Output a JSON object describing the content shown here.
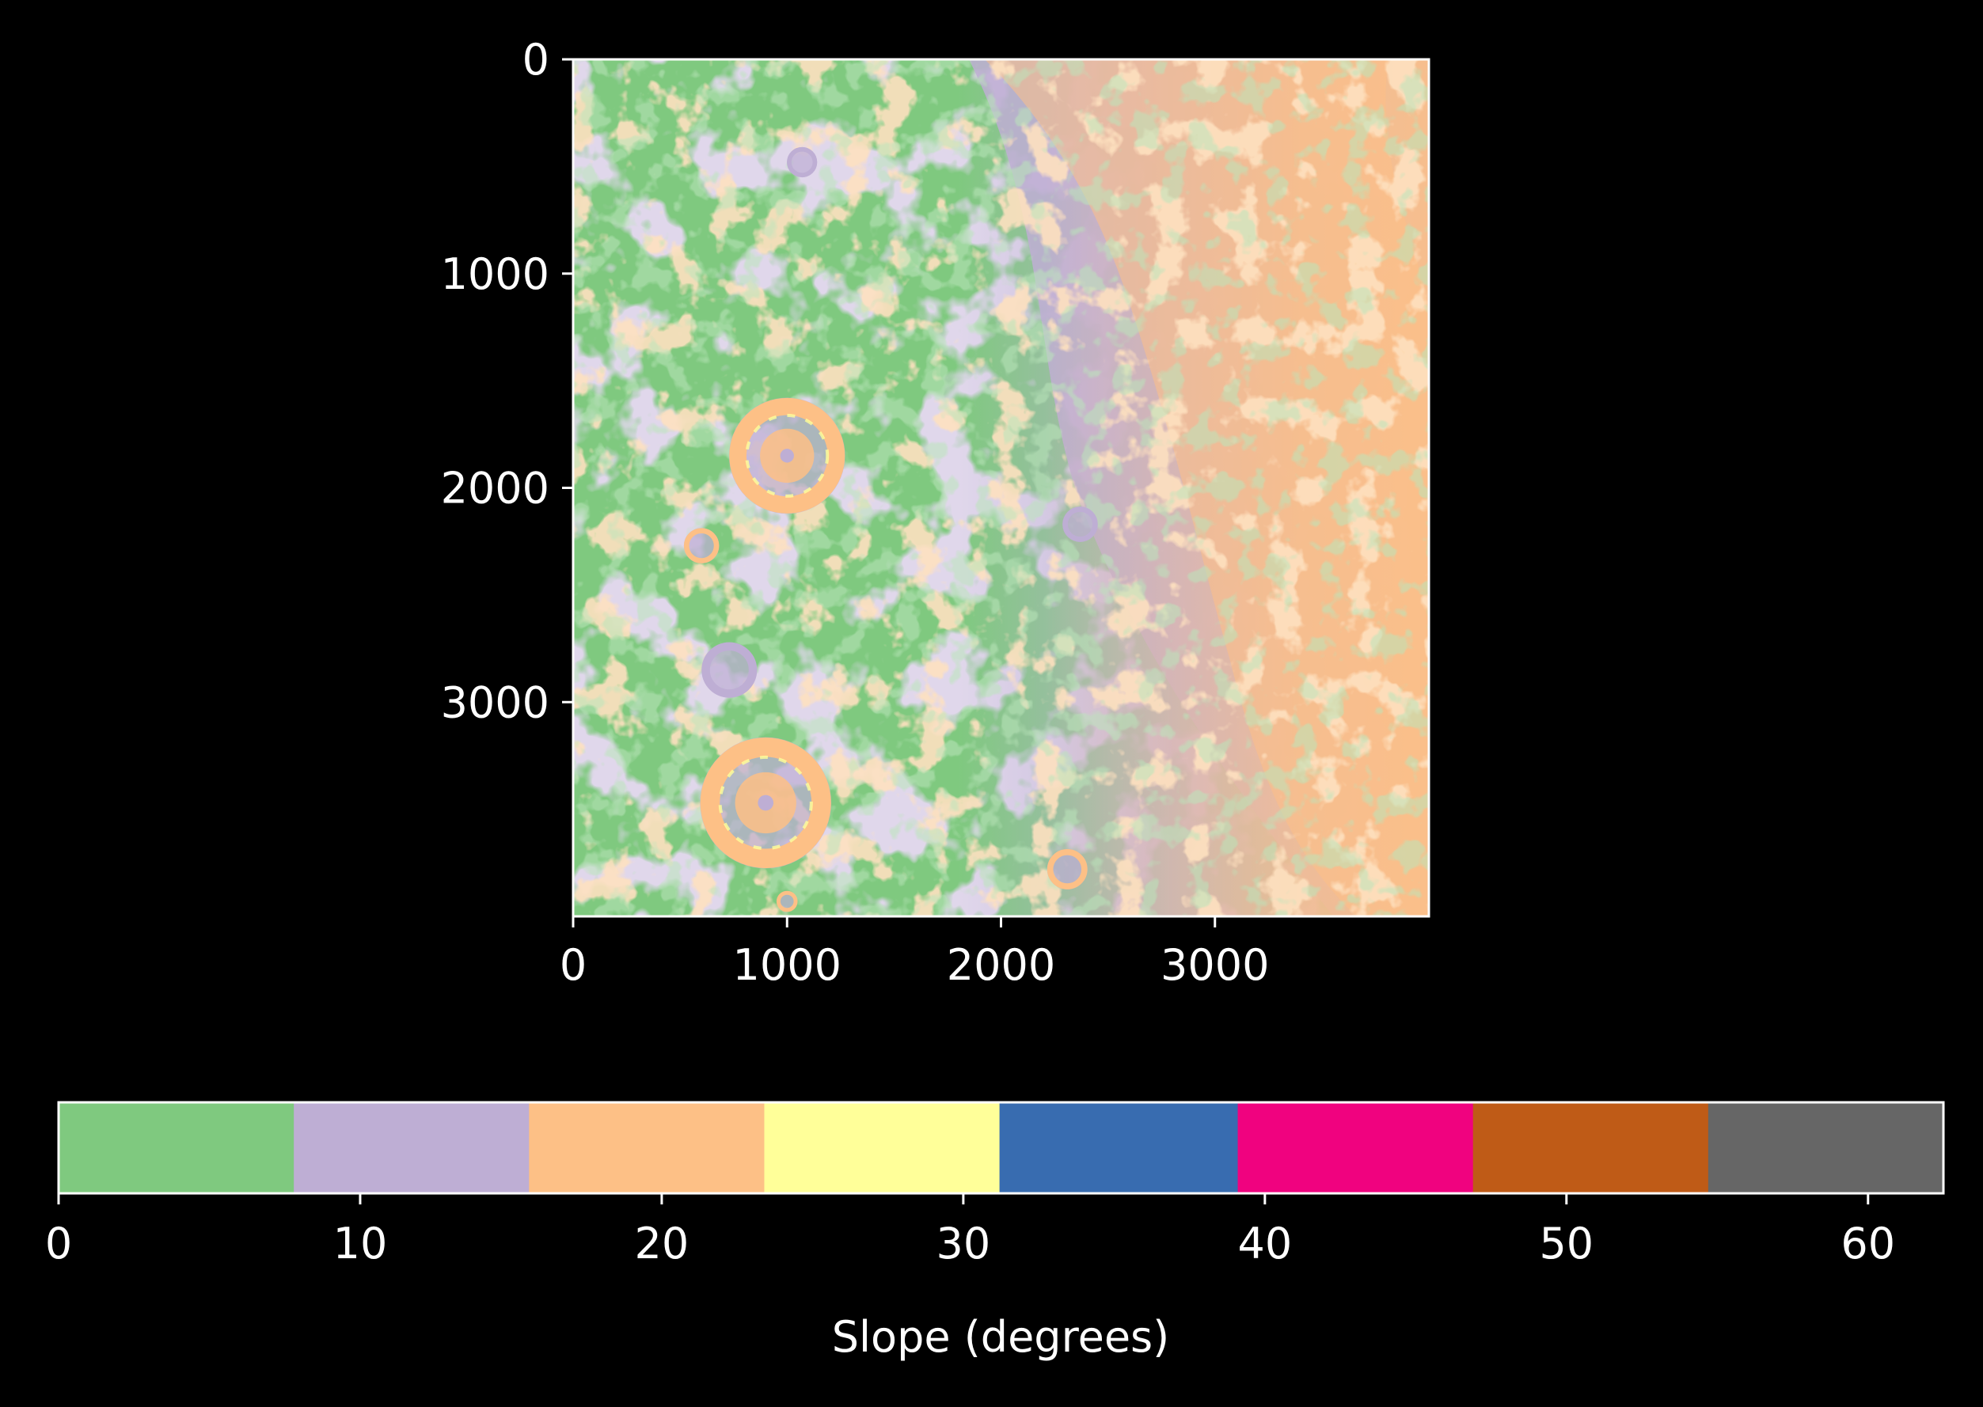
{
  "chart_data": {
    "type": "heatmap",
    "title": "",
    "image": {
      "xlabel": "",
      "ylabel": "",
      "xlim": [
        0,
        4000
      ],
      "ylim": [
        4000,
        0
      ],
      "x_ticks": [
        0,
        1000,
        2000,
        3000
      ],
      "y_ticks": [
        0,
        1000,
        2000,
        3000
      ],
      "features": [
        {
          "kind": "crater",
          "x": 1000,
          "y": 1850,
          "r": 230,
          "rim_slope": 20
        },
        {
          "kind": "crater",
          "x": 600,
          "y": 2270,
          "r": 70,
          "rim_slope": 20
        },
        {
          "kind": "crater",
          "x": 730,
          "y": 2850,
          "r": 110,
          "rim_slope": 10
        },
        {
          "kind": "crater",
          "x": 900,
          "y": 3470,
          "r": 260,
          "rim_slope": 20
        },
        {
          "kind": "crater",
          "x": 2310,
          "y": 3780,
          "r": 80,
          "rim_slope": 20
        },
        {
          "kind": "crater",
          "x": 1000,
          "y": 3930,
          "r": 40,
          "rim_slope": 20
        },
        {
          "kind": "crater",
          "x": 1070,
          "y": 480,
          "r": 60,
          "rim_slope": 10
        },
        {
          "kind": "crater",
          "x": 2370,
          "y": 2170,
          "r": 70,
          "rim_slope": 10
        }
      ]
    },
    "colorbar": {
      "label": "Slope (degrees)",
      "range": [
        0,
        62.5
      ],
      "ticks": [
        0,
        10,
        20,
        30,
        40,
        50,
        60
      ],
      "bins": [
        {
          "from": 0,
          "to": 7.8,
          "color": "#7fc97f"
        },
        {
          "from": 7.8,
          "to": 15.6,
          "color": "#beaed4"
        },
        {
          "from": 15.6,
          "to": 23.4,
          "color": "#fdc086"
        },
        {
          "from": 23.4,
          "to": 31.2,
          "color": "#ffff99"
        },
        {
          "from": 31.2,
          "to": 39.1,
          "color": "#386cb0"
        },
        {
          "from": 39.1,
          "to": 46.9,
          "color": "#f0027f"
        },
        {
          "from": 46.9,
          "to": 54.7,
          "color": "#bf5b17"
        },
        {
          "from": 54.7,
          "to": 62.5,
          "color": "#666666"
        }
      ]
    }
  },
  "colors": {
    "background": "#000000",
    "foreground": "#ffffff"
  }
}
